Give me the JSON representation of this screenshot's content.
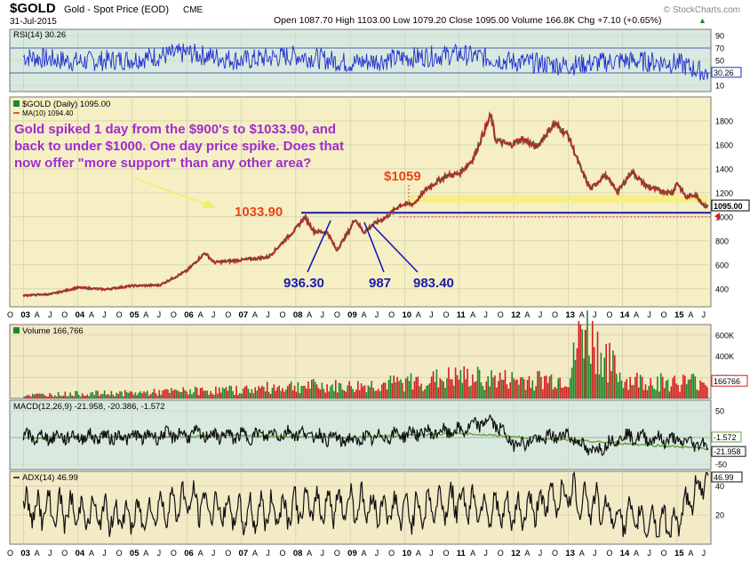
{
  "header": {
    "symbol": "$GOLD",
    "description": "Gold - Spot Price (EOD)",
    "exchange": "CME",
    "date": "31-Jul-2015",
    "ohlc_text": "Open 1087.70  High 1103.00  Low 1079.20  Close 1095.00  Volume 166.8K  Chg +7.10 (+0.65%)",
    "ohlc_arrow": "▲",
    "watermark": "© StockCharts.com"
  },
  "colors": {
    "price_bg": "#f5efc3",
    "indicator_bg": "#d8eadf",
    "volume_bg": "#f3eac6",
    "rsi_line": "#1f2fd0",
    "price_up": "#1a8a2a",
    "price_down": "#d11f1f",
    "ma_line": "#d11f1f",
    "macd_line": "#111111",
    "signal_line": "#6aa040",
    "adx_line": "#111111",
    "annotation_purple": "#a12ccf",
    "annotation_orange": "#e8451b",
    "annotation_blue": "#1a1bb0",
    "highlight_band": "#f4ee7a",
    "support_line": "#1a1bb0",
    "dotted_line": "#d11f1f",
    "arrow_yellow": "#f2ee66"
  },
  "chart_data": [
    {
      "type": "line",
      "panel": "RSI",
      "legend": "RSI(14) 30.26",
      "last_value_label": "30.26",
      "ylim": [
        0,
        100
      ],
      "y_ticks": [
        10,
        30,
        50,
        70,
        90
      ],
      "reference_levels": [
        30,
        70
      ],
      "series": [
        {
          "name": "RSI(14)",
          "x": [
            "2003-01",
            "2004-01",
            "2005-01",
            "2006-01",
            "2007-01",
            "2008-01",
            "2009-01",
            "2010-01",
            "2011-01",
            "2012-01",
            "2013-01",
            "2014-01",
            "2015-01",
            "2015-07"
          ],
          "values": [
            56,
            48,
            52,
            62,
            50,
            58,
            46,
            54,
            60,
            48,
            42,
            50,
            46,
            30.26
          ]
        }
      ]
    },
    {
      "type": "line",
      "panel": "Price",
      "legend": "$GOLD (Daily) 1095.00",
      "legend2": "MA(10) 1094.40",
      "last_value_label": "1095.00",
      "ylim": [
        250,
        2000
      ],
      "y_ticks": [
        400,
        600,
        800,
        1000,
        1200,
        1400,
        1600,
        1800
      ],
      "series": [
        {
          "name": "$GOLD (Daily)",
          "x": [
            "2003-01",
            "2003-07",
            "2004-01",
            "2004-07",
            "2005-01",
            "2005-07",
            "2006-01",
            "2006-05",
            "2006-07",
            "2007-01",
            "2007-07",
            "2008-01",
            "2008-03",
            "2008-05",
            "2008-08",
            "2008-10",
            "2009-01",
            "2009-02",
            "2009-04",
            "2009-06",
            "2009-09",
            "2009-12",
            "2010-03",
            "2010-06",
            "2010-10",
            "2011-01",
            "2011-04",
            "2011-08",
            "2011-09",
            "2011-12",
            "2012-03",
            "2012-06",
            "2012-10",
            "2013-01",
            "2013-04",
            "2013-06",
            "2013-09",
            "2013-12",
            "2014-03",
            "2014-06",
            "2014-09",
            "2014-12",
            "2015-01",
            "2015-03",
            "2015-05",
            "2015-07"
          ],
          "values": [
            345,
            355,
            410,
            395,
            425,
            430,
            550,
            700,
            620,
            640,
            665,
            900,
            1000,
            880,
            870,
            720,
            900,
            987,
            870,
            936,
            1000,
            1100,
            1110,
            1240,
            1340,
            1360,
            1480,
            1850,
            1640,
            1600,
            1650,
            1580,
            1780,
            1680,
            1380,
            1230,
            1350,
            1210,
            1380,
            1260,
            1220,
            1200,
            1290,
            1160,
            1190,
            1095
          ]
        },
        {
          "name": "MA(10)",
          "x": [
            "2003-01",
            "2004-01",
            "2005-01",
            "2006-01",
            "2007-01",
            "2008-01",
            "2008-10",
            "2009-06",
            "2010-06",
            "2011-08",
            "2012-10",
            "2013-06",
            "2014-06",
            "2015-07"
          ],
          "values": [
            345,
            405,
            425,
            545,
            640,
            890,
            740,
            930,
            1230,
            1820,
            1770,
            1240,
            1265,
            1094.4
          ]
        }
      ],
      "annotations": [
        {
          "text": "Gold spiked 1 day from the $900's to $1033.90, and",
          "kind": "note"
        },
        {
          "text": "back to under $1000. One day price spike. Does that",
          "kind": "note"
        },
        {
          "text": "now offer   \"more support\" than any other area?",
          "kind": "note"
        },
        {
          "text": "1033.90",
          "kind": "level",
          "value": 1033.9
        },
        {
          "text": "$1059",
          "kind": "level",
          "value": 1059
        },
        {
          "text": "936.30",
          "kind": "low",
          "value": 936.3
        },
        {
          "text": "987",
          "kind": "low",
          "value": 987
        },
        {
          "text": "983.40",
          "kind": "low",
          "value": 983.4
        }
      ],
      "support_level": 1033.9,
      "dotted_level": 1000,
      "highlight_band": [
        1120,
        1180
      ]
    },
    {
      "type": "bar",
      "panel": "Volume",
      "legend": "Volume 166,766",
      "last_value_label": "166766",
      "ylim": [
        0,
        700000
      ],
      "y_ticks": [
        200000,
        400000,
        600000
      ],
      "y_tick_labels": [
        "200K",
        "400K",
        "600K"
      ],
      "series": [
        {
          "name": "Volume",
          "x": [
            "2003-01",
            "2004-01",
            "2005-01",
            "2006-01",
            "2007-01",
            "2008-01",
            "2009-01",
            "2010-01",
            "2011-01",
            "2012-01",
            "2013-01",
            "2013-04",
            "2014-01",
            "2015-01",
            "2015-07"
          ],
          "values": [
            30000,
            45000,
            50000,
            70000,
            80000,
            120000,
            110000,
            150000,
            200000,
            170000,
            180000,
            650000,
            170000,
            150000,
            166766
          ]
        }
      ]
    },
    {
      "type": "line",
      "panel": "MACD",
      "legend": "MACD(12,26,9) -21.958, -20.386, -1.572",
      "last_value_labels": [
        "-1.572",
        "-21.958"
      ],
      "ylim": [
        -60,
        70
      ],
      "y_ticks": [
        -50,
        0,
        50
      ],
      "series": [
        {
          "name": "MACD",
          "x": [
            "2003-01",
            "2004-01",
            "2005-01",
            "2006-01",
            "2007-01",
            "2008-01",
            "2009-01",
            "2010-01",
            "2011-01",
            "2011-08",
            "2012-01",
            "2013-01",
            "2013-06",
            "2014-01",
            "2015-01",
            "2015-07"
          ],
          "values": [
            0,
            3,
            2,
            10,
            4,
            15,
            -10,
            12,
            20,
            55,
            -20,
            10,
            -45,
            5,
            -10,
            -21.958
          ]
        },
        {
          "name": "Signal",
          "x": [
            "2003-01",
            "2005-01",
            "2007-01",
            "2009-01",
            "2011-01",
            "2013-01",
            "2015-07"
          ],
          "values": [
            0,
            1,
            3,
            0,
            8,
            -5,
            -20.386
          ]
        }
      ]
    },
    {
      "type": "line",
      "panel": "ADX",
      "legend": "ADX(14) 46.99",
      "last_value_label": "46.99",
      "ylim": [
        0,
        50
      ],
      "y_ticks": [
        20,
        40
      ],
      "series": [
        {
          "name": "ADX(14)",
          "x": [
            "2003-01",
            "2004-01",
            "2005-01",
            "2006-01",
            "2007-01",
            "2008-01",
            "2009-01",
            "2010-01",
            "2011-01",
            "2012-01",
            "2013-01",
            "2014-01",
            "2015-01",
            "2015-07"
          ],
          "values": [
            25,
            22,
            18,
            30,
            20,
            25,
            28,
            22,
            30,
            20,
            35,
            18,
            14,
            46.99
          ]
        }
      ]
    },
    {
      "type": "axis",
      "panel": "Time",
      "xlim": [
        "2003-01",
        "2015-08"
      ],
      "x_tick_labels": [
        "O",
        "03",
        "A",
        "J",
        "O",
        "04",
        "A",
        "J",
        "O",
        "05",
        "A",
        "J",
        "O",
        "06",
        "A",
        "J",
        "O",
        "07",
        "A",
        "J",
        "O",
        "08",
        "A",
        "J",
        "O",
        "09",
        "A",
        "J",
        "O",
        "10",
        "A",
        "J",
        "O",
        "11",
        "A",
        "J",
        "O",
        "12",
        "A",
        "J",
        "O",
        "13",
        "A",
        "J",
        "O",
        "14",
        "A",
        "J",
        "O",
        "15",
        "A",
        "J"
      ]
    }
  ]
}
